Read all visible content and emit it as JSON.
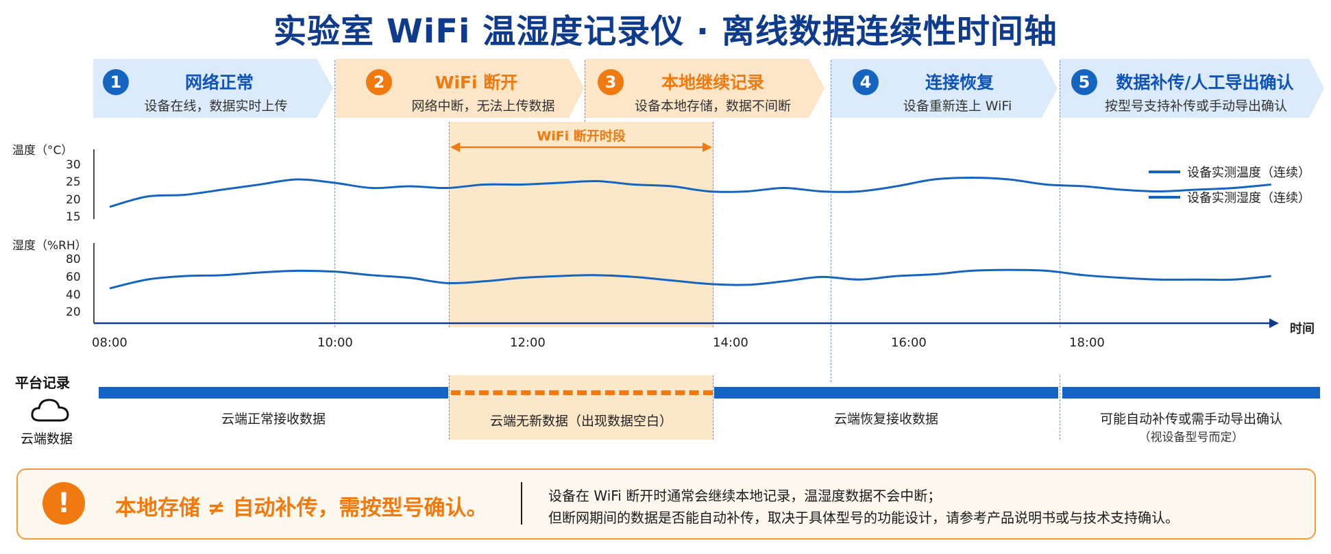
{
  "title": "实验室 WiFi 温湿度记录仪 · 离线数据连续性时间轴",
  "phases": [
    {
      "num": "1",
      "title": "网络正常",
      "sub": "设备在线，数据实时上传",
      "color": "blue"
    },
    {
      "num": "2",
      "title": "WiFi 断开",
      "sub": "网络中断，无法上传数据",
      "color": "orange"
    },
    {
      "num": "3",
      "title": "本地继续记录",
      "sub": "设备本地存储，数据不间断",
      "color": "orange"
    },
    {
      "num": "4",
      "title": "连接恢复",
      "sub": "设备重新连上 WiFi",
      "color": "blue"
    },
    {
      "num": "5",
      "title": "数据补传/人工导出确认",
      "sub": "按型号支持补传或手动导出确认",
      "color": "blue"
    }
  ],
  "outage_label": "WiFi 断开时段",
  "chart_data": {
    "type": "line",
    "x_unit": "time",
    "x_ticks": [
      "08:00",
      "10:00",
      "12:00",
      "14:00",
      "16:00",
      "18:00"
    ],
    "x_axis_label": "时间",
    "legend": [
      "设备实测温度（连续）",
      "设备实测湿度（连续）"
    ],
    "temperature": {
      "ylabel": "温度（°C）",
      "yticks": [
        30,
        25,
        20,
        15
      ],
      "ylim": [
        15,
        30
      ],
      "x": [
        "08:00",
        "08:20",
        "08:40",
        "09:00",
        "09:20",
        "09:40",
        "10:00",
        "10:20",
        "10:40",
        "11:00",
        "11:20",
        "11:40",
        "12:00",
        "12:20",
        "12:40",
        "13:00",
        "13:20",
        "13:40",
        "14:00",
        "14:20",
        "14:40",
        "15:00",
        "15:20",
        "15:40",
        "16:00",
        "16:20",
        "16:40",
        "17:00",
        "17:20",
        "17:40",
        "18:00",
        "18:20"
      ],
      "values": [
        18,
        21,
        21.5,
        23,
        24.5,
        26,
        25,
        23.5,
        24,
        23.5,
        24.5,
        24.5,
        25,
        25.5,
        24.5,
        24,
        22.5,
        22.5,
        23.5,
        22.5,
        22.5,
        24,
        26,
        26.5,
        26,
        24.5,
        24,
        23,
        22.5,
        23,
        23.5,
        24.5
      ]
    },
    "humidity": {
      "ylabel": "湿度（%RH）",
      "yticks": [
        80,
        60,
        40,
        20
      ],
      "ylim": [
        20,
        80
      ],
      "x": [
        "08:00",
        "08:20",
        "08:40",
        "09:00",
        "09:20",
        "09:40",
        "10:00",
        "10:20",
        "10:40",
        "11:00",
        "11:20",
        "11:40",
        "12:00",
        "12:20",
        "12:40",
        "13:00",
        "13:20",
        "13:40",
        "14:00",
        "14:20",
        "14:40",
        "15:00",
        "15:20",
        "15:40",
        "16:00",
        "16:20",
        "16:40",
        "17:00",
        "17:20",
        "17:40",
        "18:00",
        "18:20"
      ],
      "values": [
        48,
        58,
        62,
        63,
        66,
        68,
        67,
        63,
        60,
        54,
        56,
        60,
        62,
        63,
        61,
        57,
        53,
        52,
        56,
        61,
        58,
        62,
        64,
        68,
        69,
        68,
        63,
        60,
        58,
        58,
        58,
        62
      ]
    }
  },
  "platform": {
    "label": "平台记录",
    "cloud_label": "云端数据",
    "segments": [
      "云端正常接收数据",
      "云端无新数据（出现数据空白）",
      "云端恢复接收数据",
      "可能自动补传或需手动导出确认"
    ],
    "segment5_note": "（视设备型号而定）"
  },
  "note": {
    "icon": "!",
    "headline": "本地存储 ≠ 自动补传，需按型号确认。",
    "line1": "设备在 WiFi 断开时通常会继续本地记录，温湿度数据不会中断；",
    "line2": "但断网期间的数据是否能自动补传，取决于具体型号的功能设计，请参考产品说明书或与技术支持确认。"
  },
  "colors": {
    "blue": "#1565c0",
    "dark_blue": "#0f3b8c",
    "orange": "#f07a10",
    "phase_blue_bg": "#dcebfb",
    "phase_orange_bg": "#fde6c8",
    "outage_bg": "#fde3bf"
  }
}
